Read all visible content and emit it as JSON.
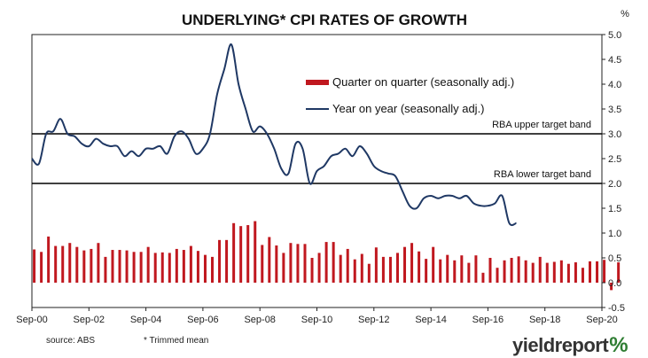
{
  "chart_data": {
    "type": "bar+line",
    "title": "UNDERLYING* CPI RATES OF GROWTH",
    "y_unit": "%",
    "ylim": [
      -0.5,
      5.0
    ],
    "y_ticks": [
      "5.0",
      "4.5",
      "4.0",
      "3.5",
      "3.0",
      "2.5",
      "2.0",
      "1.5",
      "1.0",
      "0.5",
      "0.0",
      "-0.5"
    ],
    "x_range": [
      2000.67,
      2020.67
    ],
    "x_ticks": [
      {
        "label": "Sep-00",
        "x": 2000.67
      },
      {
        "label": "Sep-02",
        "x": 2002.67
      },
      {
        "label": "Sep-04",
        "x": 2004.67
      },
      {
        "label": "Sep-06",
        "x": 2006.67
      },
      {
        "label": "Sep-08",
        "x": 2008.67
      },
      {
        "label": "Sep-10",
        "x": 2010.67
      },
      {
        "label": "Sep-12",
        "x": 2012.67
      },
      {
        "label": "Sep-14",
        "x": 2014.67
      },
      {
        "label": "Sep-16",
        "x": 2016.67
      },
      {
        "label": "Sep-18",
        "x": 2018.67
      },
      {
        "label": "Sep-20",
        "x": 2020.67
      }
    ],
    "series": [
      {
        "name": "Quarter on quarter (seasonally adj.)",
        "kind": "bar",
        "color": "#c0181f",
        "start": 2000.75,
        "step": 0.25,
        "values": [
          0.67,
          0.62,
          0.93,
          0.74,
          0.74,
          0.8,
          0.72,
          0.65,
          0.68,
          0.8,
          0.52,
          0.66,
          0.66,
          0.65,
          0.62,
          0.62,
          0.72,
          0.6,
          0.61,
          0.6,
          0.68,
          0.66,
          0.74,
          0.64,
          0.56,
          0.52,
          0.86,
          0.86,
          1.2,
          1.14,
          1.16,
          1.24,
          0.76,
          0.92,
          0.75,
          0.6,
          0.8,
          0.78,
          0.78,
          0.5,
          0.6,
          0.82,
          0.82,
          0.56,
          0.68,
          0.47,
          0.58,
          0.38,
          0.71,
          0.52,
          0.52,
          0.6,
          0.72,
          0.8,
          0.63,
          0.48,
          0.72,
          0.47,
          0.56,
          0.45,
          0.55,
          0.4,
          0.55,
          0.2,
          0.5,
          0.3,
          0.45,
          0.5,
          0.53,
          0.45,
          0.4,
          0.52,
          0.4,
          0.42,
          0.45,
          0.38,
          0.41,
          0.3,
          0.43,
          0.43,
          0.46,
          -0.15,
          0.41
        ]
      },
      {
        "name": "Year on year (seasonally adj.)",
        "kind": "line",
        "color": "#1f3864",
        "start": 2000.67,
        "step": 0.25,
        "values": [
          2.5,
          2.4,
          3.0,
          3.05,
          3.3,
          3.0,
          2.95,
          2.8,
          2.75,
          2.9,
          2.8,
          2.75,
          2.75,
          2.55,
          2.65,
          2.55,
          2.7,
          2.7,
          2.75,
          2.6,
          2.95,
          3.05,
          2.9,
          2.6,
          2.7,
          3.0,
          3.8,
          4.3,
          4.8,
          4.0,
          3.5,
          3.05,
          3.15,
          3.0,
          2.7,
          2.3,
          2.2,
          2.8,
          2.7,
          2.0,
          2.25,
          2.35,
          2.55,
          2.6,
          2.7,
          2.55,
          2.75,
          2.6,
          2.35,
          2.25,
          2.2,
          2.15,
          1.85,
          1.55,
          1.5,
          1.7,
          1.75,
          1.7,
          1.75,
          1.75,
          1.7,
          1.75,
          1.6,
          1.55,
          1.55,
          1.6,
          1.75,
          1.2,
          1.2
        ]
      }
    ],
    "reference_lines": [
      {
        "label": "RBA upper target band",
        "y": 3.0
      },
      {
        "label": "RBA lower target band",
        "y": 2.0
      }
    ],
    "legend": {
      "placement": "upper-center"
    }
  },
  "footer": {
    "source": "source: ABS",
    "note": "*  Trimmed mean"
  },
  "logo": {
    "text": "yieldreport",
    "symbol": "%"
  }
}
